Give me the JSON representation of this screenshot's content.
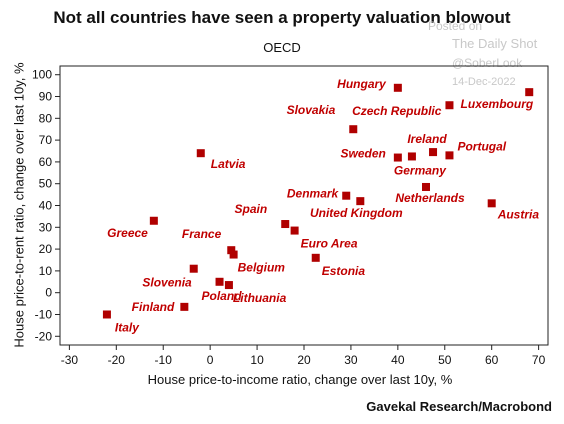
{
  "header": {
    "title": "Not all countries have seen a property valuation blowout",
    "subtitle": "OECD"
  },
  "watermark": {
    "posted": "Posted on",
    "source": "The Daily Shot",
    "handle": "@SoberLook",
    "date": "14-Dec-2022"
  },
  "footer": {
    "credit": "Gavekal Research/Macrobond"
  },
  "colors": {
    "marker": "#b00000",
    "label": "#c00000",
    "axis": "#222222"
  },
  "chart_data": {
    "type": "scatter",
    "xlabel": "House price-to-income ratio, change over last 10y, %",
    "ylabel": "House price-to-rent ratio, change over last 10y, %",
    "xlim": [
      -32,
      72
    ],
    "ylim": [
      -24,
      104
    ],
    "xticks": [
      -30,
      -20,
      -10,
      0,
      10,
      20,
      30,
      40,
      50,
      60,
      70
    ],
    "yticks": [
      -20,
      -10,
      0,
      10,
      20,
      30,
      40,
      50,
      60,
      70,
      80,
      90,
      100
    ],
    "grid": false,
    "points": [
      {
        "label": "Hungary",
        "x": 40,
        "y": 94,
        "label_pos": "left"
      },
      {
        "label": "Czech Republic",
        "x": 51,
        "y": 86,
        "label_pos": "left"
      },
      {
        "label": "Luxembourg",
        "x": 68,
        "y": 92,
        "label_pos": "below-left"
      },
      {
        "label": "Slovakia",
        "x": 30.5,
        "y": 75,
        "label_pos": "upper-left"
      },
      {
        "label": "Ireland",
        "x": 47.5,
        "y": 64.5,
        "label_pos": "above"
      },
      {
        "label": "Sweden",
        "x": 40,
        "y": 62,
        "label_pos": "left"
      },
      {
        "label": "Portugal",
        "x": 51,
        "y": 63,
        "label_pos": "right"
      },
      {
        "label": "Germany",
        "x": 43,
        "y": 62.5,
        "label_pos": "below"
      },
      {
        "label": "Latvia",
        "x": -2,
        "y": 64,
        "label_pos": "below-right"
      },
      {
        "label": "Netherlands",
        "x": 46,
        "y": 48.5,
        "label_pos": "below"
      },
      {
        "label": "Denmark",
        "x": 29,
        "y": 44.5,
        "label_pos": "left"
      },
      {
        "label": "United Kingdom",
        "x": 32,
        "y": 42,
        "label_pos": "below"
      },
      {
        "label": "Austria",
        "x": 60,
        "y": 41,
        "label_pos": "below-right"
      },
      {
        "label": "Spain",
        "x": 16,
        "y": 31.5,
        "label_pos": "upper-left"
      },
      {
        "label": "Greece",
        "x": -12,
        "y": 33,
        "label_pos": "below-left"
      },
      {
        "label": "Euro Area",
        "x": 18,
        "y": 28.5,
        "label_pos": "below-right"
      },
      {
        "label": "France",
        "x": 4.5,
        "y": 19.5,
        "label_pos": "upper-left"
      },
      {
        "label": "Belgium",
        "x": 5,
        "y": 17.5,
        "label_pos": "below-right"
      },
      {
        "label": "Estonia",
        "x": 22.5,
        "y": 16,
        "label_pos": "below-right"
      },
      {
        "label": "Slovenia",
        "x": -3.5,
        "y": 11,
        "label_pos": "below-left"
      },
      {
        "label": "Lithuania",
        "x": 4,
        "y": 3.5,
        "label_pos": "below-right"
      },
      {
        "label": "Poland",
        "x": 2,
        "y": 5,
        "label_pos": "below"
      },
      {
        "label": "Finland",
        "x": -5.5,
        "y": -6.5,
        "label_pos": "left"
      },
      {
        "label": "Italy",
        "x": -22,
        "y": -10,
        "label_pos": "below-right"
      }
    ]
  }
}
